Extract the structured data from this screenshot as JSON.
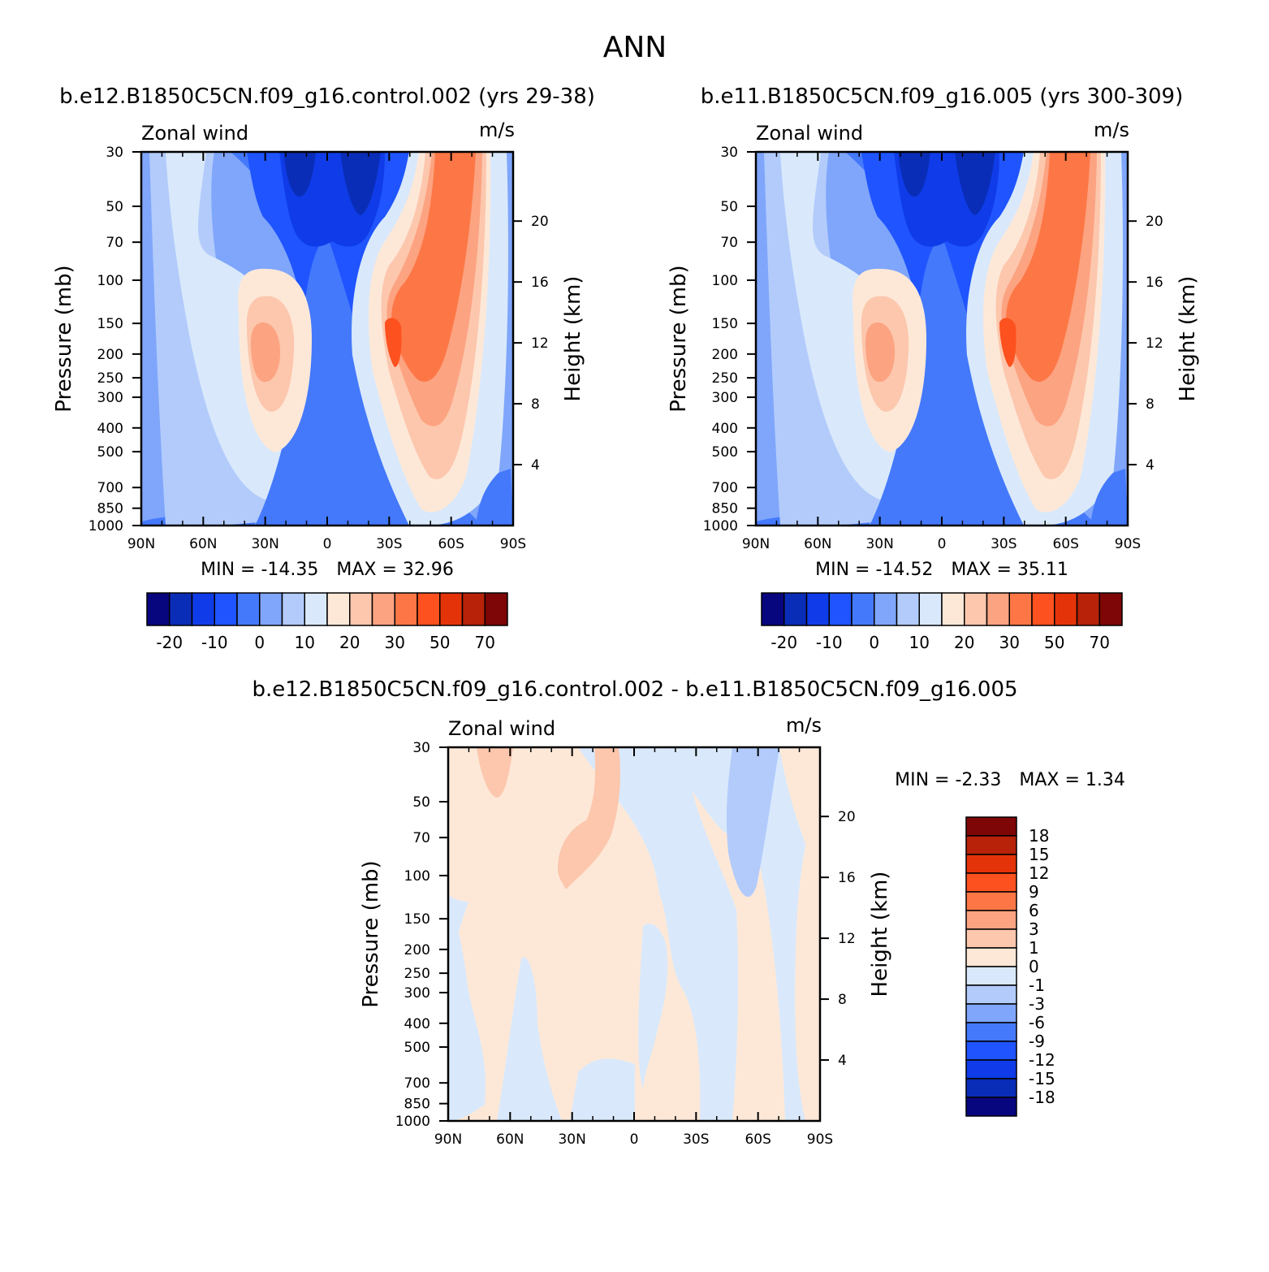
{
  "figure": {
    "season": "ANN",
    "diff_title": "b.e12.B1850C5CN.f09_g16.control.002 - b.e11.B1850C5CN.f09_g16.005"
  },
  "chart_data": [
    {
      "type": "heatmap",
      "title": "b.e12.B1850C5CN.f09_g16.control.002 (yrs 29-38)",
      "left_label": "Zonal wind",
      "right_label": "m/s",
      "ylabel": "Pressure (mb)",
      "y2label": "Height (km)",
      "x_ticks": [
        "90N",
        "60N",
        "30N",
        "0",
        "30S",
        "60S",
        "90S"
      ],
      "y_ticks": [
        30,
        50,
        70,
        100,
        150,
        200,
        250,
        300,
        400,
        500,
        700,
        850,
        1000
      ],
      "y2_ticks": [
        20,
        16,
        12,
        8,
        4
      ],
      "min_label": "MIN = -14.35",
      "max_label": "MAX = 32.96",
      "colorbar_orientation": "horizontal",
      "colorbar_colors": [
        "#08067e",
        "#0a2db8",
        "#0f3ce8",
        "#1f54ff",
        "#4479fc",
        "#7fa6fb",
        "#b2cbfb",
        "#d9e9fb",
        "#fde8d8",
        "#fcc7ad",
        "#fca381",
        "#fd7746",
        "#fd511f",
        "#e43309",
        "#b72208",
        "#7e0606"
      ],
      "colorbar_labels": [
        "-20",
        "-10",
        "0",
        "10",
        "20",
        "30",
        "50",
        "70"
      ]
    },
    {
      "type": "heatmap",
      "title": "b.e11.B1850C5CN.f09_g16.005 (yrs 300-309)",
      "left_label": "Zonal wind",
      "right_label": "m/s",
      "ylabel": "Pressure (mb)",
      "y2label": "Height (km)",
      "x_ticks": [
        "90N",
        "60N",
        "30N",
        "0",
        "30S",
        "60S",
        "90S"
      ],
      "y_ticks": [
        30,
        50,
        70,
        100,
        150,
        200,
        250,
        300,
        400,
        500,
        700,
        850,
        1000
      ],
      "y2_ticks": [
        20,
        16,
        12,
        8,
        4
      ],
      "min_label": "MIN = -14.52",
      "max_label": "MAX = 35.11",
      "colorbar_orientation": "horizontal",
      "colorbar_colors": [
        "#08067e",
        "#0a2db8",
        "#0f3ce8",
        "#1f54ff",
        "#4479fc",
        "#7fa6fb",
        "#b2cbfb",
        "#d9e9fb",
        "#fde8d8",
        "#fcc7ad",
        "#fca381",
        "#fd7746",
        "#fd511f",
        "#e43309",
        "#b72208",
        "#7e0606"
      ],
      "colorbar_labels": [
        "-20",
        "-10",
        "0",
        "10",
        "20",
        "30",
        "50",
        "70"
      ]
    },
    {
      "type": "heatmap",
      "title": "",
      "left_label": "Zonal wind",
      "right_label": "m/s",
      "ylabel": "Pressure (mb)",
      "y2label": "Height (km)",
      "x_ticks": [
        "90N",
        "60N",
        "30N",
        "0",
        "30S",
        "60S",
        "90S"
      ],
      "y_ticks": [
        30,
        50,
        70,
        100,
        150,
        200,
        250,
        300,
        400,
        500,
        700,
        850,
        1000
      ],
      "y2_ticks": [
        20,
        16,
        12,
        8,
        4
      ],
      "min_label": "MIN = -2.33",
      "max_label": "MAX = 1.34",
      "colorbar_orientation": "vertical",
      "colorbar_colors": [
        "#7e0606",
        "#b72208",
        "#e43309",
        "#fd511f",
        "#fd7746",
        "#fca381",
        "#fcc7ad",
        "#fde8d8",
        "#d9e9fb",
        "#b2cbfb",
        "#7fa6fb",
        "#4479fc",
        "#1f54ff",
        "#0f3ce8",
        "#0a2db8",
        "#08067e"
      ],
      "colorbar_labels": [
        "18",
        "15",
        "12",
        "9",
        "6",
        "3",
        "1",
        "0",
        "-1",
        "-3",
        "-6",
        "-9",
        "-12",
        "-15",
        "-18"
      ]
    }
  ]
}
